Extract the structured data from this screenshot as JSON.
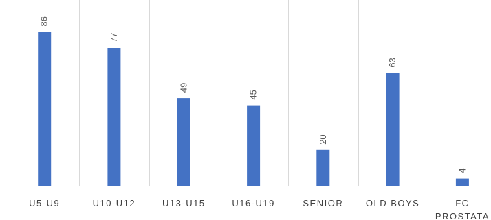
{
  "chart_data": {
    "type": "bar",
    "orientation": "vertical",
    "categories": [
      "U5-U9",
      "U10-U12",
      "U13-U15",
      "U16-U19",
      "SENIOR",
      "OLD BOYS",
      "FC PROSTATA"
    ],
    "category_lines": [
      [
        "U5-U9"
      ],
      [
        "U10-U12"
      ],
      [
        "U13-U15"
      ],
      [
        "U16-U19"
      ],
      [
        "SENIOR"
      ],
      [
        "OLD BOYS"
      ],
      [
        "FC",
        "PROSTATA"
      ]
    ],
    "values": [
      86,
      77,
      49,
      45,
      20,
      63,
      4
    ],
    "ylim": [
      0,
      100
    ],
    "bar_color": "#4472c4",
    "data_labels": true,
    "data_label_rotation": "vertical",
    "grid": "vertical-separators",
    "legend": "none",
    "title": "",
    "xlabel": "",
    "ylabel": ""
  }
}
